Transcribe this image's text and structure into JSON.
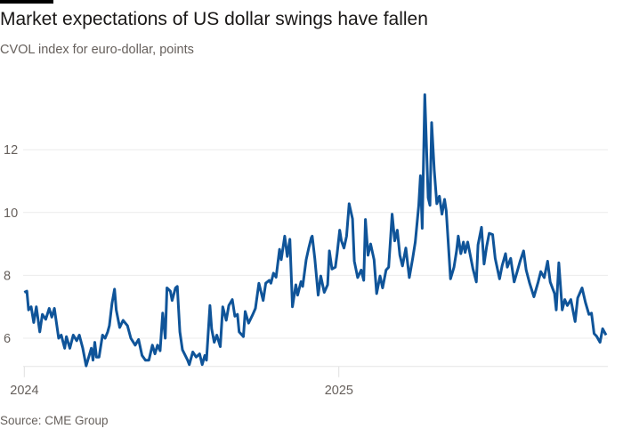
{
  "chart_data": {
    "type": "line",
    "title": "Market expectations of US dollar swings have fallen",
    "subtitle": "CVOL index for euro-dollar, points",
    "source": "Source: CME Group",
    "xlabel": "",
    "ylabel": "",
    "ylim": [
      5.1,
      14
    ],
    "yticks": [
      6,
      8,
      10,
      12
    ],
    "xticks": [
      {
        "label": "2024",
        "date": "2024-01-01"
      },
      {
        "label": "2025",
        "date": "2025-01-01"
      }
    ],
    "grid": true,
    "line_color": "#0f5499",
    "series": [
      {
        "x": [
          "2024-01-01",
          "2024-01-04",
          "2024-01-06",
          "2024-01-09",
          "2024-01-12",
          "2024-01-15",
          "2024-01-19",
          "2024-01-22",
          "2024-01-26",
          "2024-01-30",
          "2024-02-02",
          "2024-02-05",
          "2024-02-10",
          "2024-02-13",
          "2024-02-17",
          "2024-02-19",
          "2024-02-23",
          "2024-02-27",
          "2024-03-02",
          "2024-03-05",
          "2024-03-09",
          "2024-03-13",
          "2024-03-16",
          "2024-03-19",
          "2024-03-21",
          "2024-03-23",
          "2024-03-25",
          "2024-03-28",
          "2024-04-01",
          "2024-04-04",
          "2024-04-07",
          "2024-04-09",
          "2024-04-12",
          "2024-04-15",
          "2024-04-17",
          "2024-04-21",
          "2024-04-25",
          "2024-04-30",
          "2024-05-04",
          "2024-05-09",
          "2024-05-13",
          "2024-05-17",
          "2024-05-21",
          "2024-05-25",
          "2024-05-29",
          "2024-06-01",
          "2024-06-04",
          "2024-06-07",
          "2024-06-10",
          "2024-06-13",
          "2024-06-15",
          "2024-06-19",
          "2024-06-21",
          "2024-06-25",
          "2024-06-27",
          "2024-06-30",
          "2024-07-03",
          "2024-07-09",
          "2024-07-11",
          "2024-07-15",
          "2024-07-19",
          "2024-07-23",
          "2024-07-26",
          "2024-07-29",
          "2024-07-31",
          "2024-08-04",
          "2024-08-06",
          "2024-08-09",
          "2024-08-12",
          "2024-08-16",
          "2024-08-19",
          "2024-08-23",
          "2024-08-26",
          "2024-08-30",
          "2024-09-02",
          "2024-09-05",
          "2024-09-07",
          "2024-09-12",
          "2024-09-14",
          "2024-09-18",
          "2024-09-23",
          "2024-09-26",
          "2024-09-30",
          "2024-10-05",
          "2024-10-08",
          "2024-10-12",
          "2024-10-14",
          "2024-10-17",
          "2024-10-20",
          "2024-10-24",
          "2024-10-26",
          "2024-10-30",
          "2024-11-02",
          "2024-11-05",
          "2024-11-08",
          "2024-11-12",
          "2024-11-14",
          "2024-11-18",
          "2024-11-20",
          "2024-11-24",
          "2024-11-27",
          "2024-11-30",
          "2024-12-01",
          "2024-12-04",
          "2024-12-08",
          "2024-12-11",
          "2024-12-15",
          "2024-12-19",
          "2024-12-21",
          "2024-12-24",
          "2024-12-28",
          "2024-12-30",
          "2025-01-02",
          "2025-01-04",
          "2025-01-07",
          "2025-01-10",
          "2025-01-13",
          "2025-01-17",
          "2025-01-19",
          "2025-01-23",
          "2025-01-27",
          "2025-01-30",
          "2025-02-01",
          "2025-02-04",
          "2025-02-07",
          "2025-02-11",
          "2025-02-14",
          "2025-02-18",
          "2025-02-21",
          "2025-02-25",
          "2025-02-28",
          "2025-03-04",
          "2025-03-07",
          "2025-03-10",
          "2025-03-13",
          "2025-03-16",
          "2025-03-20",
          "2025-03-24",
          "2025-03-28",
          "2025-03-31",
          "2025-04-04",
          "2025-04-06",
          "2025-04-08",
          "2025-04-11",
          "2025-04-15",
          "2025-04-17",
          "2025-04-19",
          "2025-04-22",
          "2025-04-25",
          "2025-04-28",
          "2025-05-01",
          "2025-05-04",
          "2025-05-06",
          "2025-05-08",
          "2025-05-11",
          "2025-05-15",
          "2025-05-18",
          "2025-05-20",
          "2025-05-23",
          "2025-05-26",
          "2025-05-28",
          "2025-05-31",
          "2025-06-06",
          "2025-06-10",
          "2025-06-12",
          "2025-06-16",
          "2025-06-19",
          "2025-06-22",
          "2025-06-25",
          "2025-06-29",
          "2025-07-02",
          "2025-07-07",
          "2025-07-10",
          "2025-07-14",
          "2025-07-16",
          "2025-07-20",
          "2025-07-24",
          "2025-07-27",
          "2025-07-31",
          "2025-08-04",
          "2025-08-07",
          "2025-08-11",
          "2025-08-16",
          "2025-08-21",
          "2025-08-24",
          "2025-08-28",
          "2025-09-01",
          "2025-09-04",
          "2025-09-09",
          "2025-09-11",
          "2025-09-14",
          "2025-09-18",
          "2025-09-21",
          "2025-09-24",
          "2025-09-28",
          "2025-10-03",
          "2025-10-06",
          "2025-10-11",
          "2025-10-15",
          "2025-10-19",
          "2025-10-22",
          "2025-10-25",
          "2025-10-28",
          "2025-11-01",
          "2025-11-04",
          "2025-11-08"
        ],
        "y": [
          7.46,
          7.5,
          6.9,
          7.0,
          6.5,
          7.0,
          6.2,
          6.76,
          6.6,
          6.95,
          6.67,
          6.95,
          6.0,
          6.1,
          5.68,
          6.05,
          5.68,
          6.1,
          5.92,
          6.1,
          5.68,
          5.12,
          5.4,
          5.68,
          5.3,
          5.87,
          5.4,
          5.4,
          6.1,
          6.0,
          6.2,
          6.4,
          7.1,
          7.56,
          6.9,
          6.34,
          6.57,
          6.4,
          6.0,
          5.78,
          5.96,
          5.45,
          5.3,
          5.3,
          5.78,
          5.5,
          5.78,
          5.6,
          6.8,
          6.0,
          7.6,
          7.5,
          7.2,
          7.6,
          7.65,
          6.2,
          5.63,
          5.3,
          5.16,
          5.56,
          5.4,
          5.5,
          5.16,
          5.45,
          5.3,
          7.04,
          6.3,
          5.87,
          6.1,
          5.73,
          7.0,
          6.57,
          7.04,
          7.23,
          6.7,
          6.76,
          6.2,
          6.05,
          6.85,
          6.48,
          6.76,
          6.95,
          7.75,
          7.2,
          7.75,
          7.84,
          7.75,
          8.07,
          7.94,
          8.83,
          8.5,
          9.25,
          8.6,
          9.15,
          7.0,
          7.7,
          7.37,
          7.8,
          7.65,
          8.5,
          8.87,
          9.2,
          9.25,
          8.54,
          7.37,
          7.98,
          7.46,
          7.7,
          8.78,
          8.2,
          8.26,
          8.69,
          9.44,
          9.1,
          8.87,
          9.25,
          10.28,
          9.8,
          8.45,
          7.93,
          8.17,
          7.84,
          9.78,
          8.64,
          9.0,
          8.5,
          7.42,
          7.98,
          7.6,
          8.17,
          8.26,
          9.95,
          9.1,
          9.44,
          8.64,
          8.3,
          8.87,
          7.93,
          8.54,
          9.06,
          10.23,
          11.17,
          9.5,
          13.75,
          10.47,
          10.23,
          12.86,
          11.36,
          10.28,
          10.52,
          9.95,
          10.42,
          10.05,
          9.2,
          7.89,
          8.26,
          8.78,
          9.25,
          8.69,
          9.06,
          8.73,
          9.06,
          8.22,
          7.79,
          8.97,
          9.53,
          8.36,
          8.92,
          9.34,
          9.3,
          8.54,
          7.89,
          8.31,
          8.69,
          8.26,
          8.54,
          7.79,
          8.07,
          8.45,
          8.78,
          8.17,
          7.75,
          7.32,
          7.79,
          8.12,
          7.93,
          8.45,
          7.79,
          7.42,
          6.9,
          8.4,
          6.9,
          7.23,
          7.04,
          7.23,
          6.53,
          7.28,
          7.6,
          7.14,
          6.76,
          6.8,
          6.15,
          6.06,
          5.87,
          6.3,
          6.1
        ]
      }
    ]
  }
}
